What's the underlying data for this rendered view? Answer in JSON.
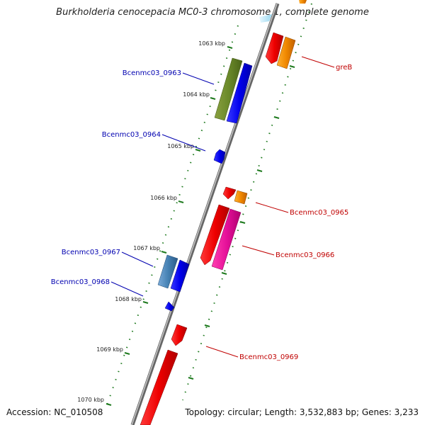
{
  "title": "Burkholderia cenocepacia MC0-3 chromosome 1, complete genome",
  "footer": {
    "accession": "Accession: NC_010508",
    "topology": "Topology: circular; Length: 3,532,883 bp; Genes: 3,233"
  },
  "colors": {
    "backbone": "#8a8a8a",
    "tick": "#1e7a1e",
    "label_minus": "#0000b0",
    "label_plus": "#c00000"
  },
  "ruler": [
    {
      "label": "1063 kbp"
    },
    {
      "label": "1064 kbp"
    },
    {
      "label": "1065 kbp"
    },
    {
      "label": "1066 kbp"
    },
    {
      "label": "1067 kbp"
    },
    {
      "label": "1068 kbp"
    },
    {
      "label": "1069 kbp"
    },
    {
      "label": "1070 kbp"
    }
  ],
  "genes": [
    {
      "id": "greB",
      "label": "greB",
      "strand": "plus"
    },
    {
      "id": "bcen-0963",
      "label": "Bcenmc03_0963",
      "strand": "minus"
    },
    {
      "id": "bcen-0964",
      "label": "Bcenmc03_0964",
      "strand": "minus"
    },
    {
      "id": "bcen-0965",
      "label": "Bcenmc03_0965",
      "strand": "plus"
    },
    {
      "id": "bcen-0966",
      "label": "Bcenmc03_0966",
      "strand": "plus"
    },
    {
      "id": "bcen-0967",
      "label": "Bcenmc03_0967",
      "strand": "minus"
    },
    {
      "id": "bcen-0968",
      "label": "Bcenmc03_0968",
      "strand": "minus"
    },
    {
      "id": "bcen-0969",
      "label": "Bcenmc03_0969",
      "strand": "plus"
    }
  ]
}
